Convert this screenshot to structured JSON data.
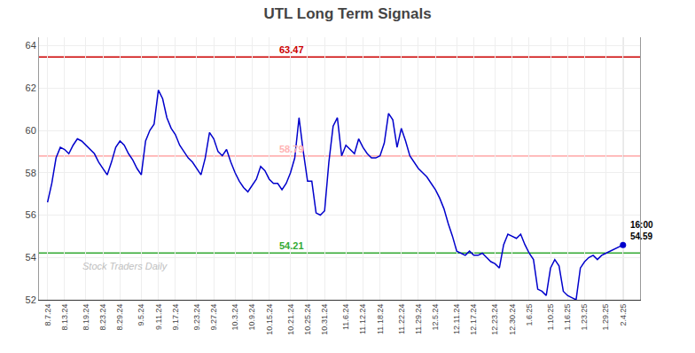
{
  "chart_data": {
    "type": "line",
    "title": "UTL Long Term Signals",
    "color": "#0000cc",
    "categories": [
      "8.7.24",
      null,
      null,
      null,
      "8.13.24",
      null,
      null,
      null,
      null,
      "8.19.24",
      null,
      null,
      null,
      "8.23.24",
      null,
      null,
      null,
      "8.29.24",
      null,
      null,
      null,
      null,
      "9.5.24",
      null,
      null,
      null,
      "9.11.24",
      null,
      null,
      null,
      "9.17.24",
      null,
      null,
      null,
      null,
      "9.23.24",
      null,
      null,
      null,
      "9.27.24",
      null,
      null,
      null,
      null,
      "10.3.24",
      null,
      null,
      null,
      "10.9.24",
      null,
      null,
      null,
      "10.15.24",
      null,
      null,
      null,
      null,
      "10.21.24",
      null,
      null,
      null,
      "10.25.24",
      null,
      null,
      null,
      "10.31.24",
      null,
      null,
      null,
      null,
      "11.6.24",
      null,
      null,
      null,
      "11.12.24",
      null,
      null,
      null,
      "11.18.24",
      null,
      null,
      null,
      null,
      "11.22.24",
      null,
      null,
      null,
      "11.29.24",
      null,
      null,
      null,
      "12.5.24",
      null,
      null,
      null,
      null,
      "12.11.24",
      null,
      null,
      null,
      "12.17.24",
      null,
      null,
      null,
      null,
      "12.23.24",
      null,
      null,
      null,
      "12.30.24",
      null,
      null,
      null,
      "1.6.25",
      null,
      null,
      null,
      null,
      "1.10.25",
      null,
      null,
      null,
      "1.16.25",
      null,
      null,
      null,
      "1.23.25",
      null,
      null,
      null,
      null,
      "1.29.25",
      null,
      null,
      null,
      "2.4.25"
    ],
    "values": [
      56.6,
      57.5,
      58.7,
      59.2,
      59.1,
      58.9,
      59.3,
      59.6,
      59.5,
      59.3,
      59.1,
      58.9,
      58.5,
      58.2,
      57.9,
      58.5,
      59.2,
      59.5,
      59.3,
      58.9,
      58.6,
      58.2,
      57.9,
      59.5,
      60.0,
      60.3,
      61.9,
      61.5,
      60.6,
      60.1,
      59.8,
      59.3,
      59.0,
      58.7,
      58.5,
      58.2,
      57.9,
      58.7,
      59.9,
      59.6,
      59.0,
      58.8,
      59.1,
      58.5,
      58.0,
      57.6,
      57.3,
      57.1,
      57.4,
      57.7,
      58.3,
      58.1,
      57.7,
      57.5,
      57.5,
      57.2,
      57.5,
      58.0,
      58.7,
      60.6,
      59.0,
      57.6,
      57.6,
      56.1,
      56.0,
      56.2,
      58.5,
      60.2,
      60.6,
      58.8,
      59.3,
      59.1,
      58.9,
      59.6,
      59.2,
      58.9,
      58.7,
      58.7,
      58.8,
      59.4,
      60.8,
      60.5,
      59.2,
      60.1,
      59.5,
      58.8,
      58.5,
      58.2,
      58.0,
      57.8,
      57.5,
      57.2,
      56.8,
      56.3,
      55.6,
      55.0,
      54.3,
      54.2,
      54.1,
      54.3,
      54.1,
      54.1,
      54.2,
      54.0,
      53.8,
      53.7,
      53.5,
      54.6,
      55.1,
      55.0,
      54.9,
      55.1,
      54.6,
      54.2,
      53.9,
      52.5,
      52.4,
      52.2,
      53.5,
      53.9,
      53.6,
      52.4,
      52.2,
      52.1,
      52.0,
      53.5,
      53.8,
      54.0,
      54.1,
      53.9,
      54.1,
      54.2,
      54.3,
      54.4,
      54.5,
      54.59
    ],
    "reference_lines": [
      {
        "value": 63.47,
        "color": "#cc0000",
        "label": "63.47"
      },
      {
        "value": 58.79,
        "color": "#ffb3b3",
        "label": "58.79"
      },
      {
        "value": 54.21,
        "color": "#33aa33",
        "label": "54.21"
      }
    ],
    "annotations": [
      {
        "text": "16:00\n54.59",
        "y": 54.59
      }
    ],
    "watermark": "Stock Traders Daily",
    "ylim": [
      52,
      64.4
    ],
    "yticks": [
      52,
      54,
      56,
      58,
      60,
      62,
      64
    ],
    "grid": true
  }
}
